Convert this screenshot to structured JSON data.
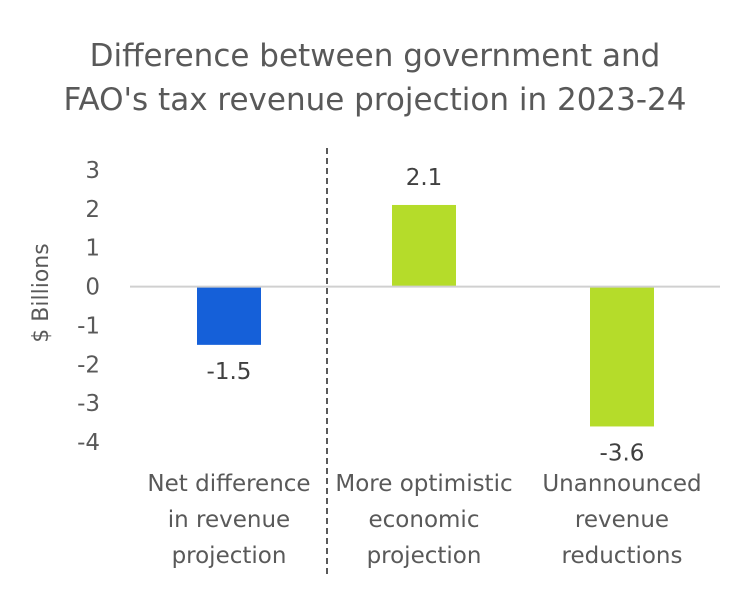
{
  "chart_data": {
    "type": "bar",
    "title_lines": [
      "Difference between government and",
      "FAO's tax revenue projection in 2023-24"
    ],
    "ylabel": "$ Billions",
    "xlabel": "",
    "ylim": [
      -4,
      3
    ],
    "yticks": [
      3,
      2,
      1,
      0,
      -1,
      -2,
      -3,
      -4
    ],
    "grid": false,
    "legend": "none",
    "categories": [
      [
        "Net difference",
        "in revenue",
        "projection"
      ],
      [
        "More optimistic",
        "economic",
        "projection"
      ],
      [
        "Unannounced",
        "revenue",
        "reductions"
      ]
    ],
    "values": [
      -1.5,
      2.1,
      -3.6
    ],
    "data_labels": [
      "-1.5",
      "2.1",
      "-3.6"
    ],
    "colors": [
      "#1560D9",
      "#B5DC2A",
      "#B5DC2A"
    ],
    "divider_after_category": 0
  }
}
